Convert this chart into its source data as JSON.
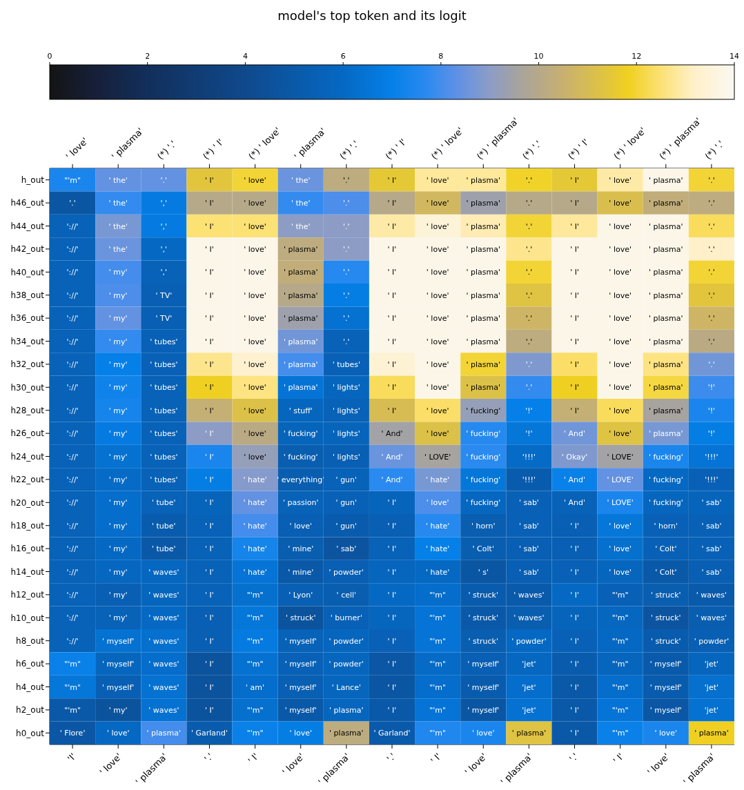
{
  "chart_data": {
    "type": "heatmap",
    "title": "model's top token and its logit",
    "categories": [
      "'I'",
      "' love'",
      "' plasma'",
      "'.'",
      "' I'",
      "' love'",
      "' plasma'",
      "'.'",
      "' I'",
      "' love'",
      "' plasma'",
      "'.'",
      "' I'",
      "' love'",
      "' plasma'"
    ],
    "annotations": [
      "' love'",
      "' plasma'",
      "(*) '.'",
      "(*) ' I'",
      "(*) ' love'",
      "' plasma'",
      "(*) '.'",
      "(*) ' I'",
      "(*) ' love'",
      "(*) ' plasma'",
      "(*) '.'",
      "(*) ' I'",
      "(*) ' love'",
      "(*) ' plasma'",
      "(*) '.'"
    ],
    "y_categories": [
      "h_out",
      "h46_out",
      "h44_out",
      "h42_out",
      "h40_out",
      "h38_out",
      "h36_out",
      "h34_out",
      "h32_out",
      "h30_out",
      "h28_out",
      "h26_out",
      "h24_out",
      "h22_out",
      "h20_out",
      "h18_out",
      "h16_out",
      "h14_out",
      "h12_out",
      "h10_out",
      "h8_out",
      "h6_out",
      "h4_out",
      "h2_out",
      "h0_out"
    ],
    "clim": [
      0,
      14
    ],
    "cticks": [
      0,
      2,
      4,
      6,
      8,
      10,
      12,
      14
    ],
    "cells": [
      [
        7.4,
        8.4,
        8.4,
        11.4,
        12.0,
        8.5,
        10.2,
        11.5,
        12.8,
        12.8,
        11.9,
        11.5,
        12.9,
        13.8,
        12.0
      ],
      [
        4.8,
        7.8,
        6.8,
        10.0,
        10.0,
        7.8,
        8.1,
        10.0,
        10.8,
        9.4,
        10.0,
        10.0,
        11.1,
        10.3,
        10.2
      ],
      [
        5.6,
        8.7,
        6.8,
        12.5,
        12.5,
        9.0,
        9.0,
        12.9,
        13.5,
        13.0,
        12.0,
        12.8,
        13.8,
        13.8,
        12.3
      ],
      [
        5.6,
        8.5,
        6.0,
        13.8,
        13.8,
        10.2,
        9.0,
        13.8,
        13.8,
        13.8,
        12.7,
        13.8,
        13.8,
        13.8,
        13.2
      ],
      [
        5.6,
        8.0,
        5.6,
        13.8,
        13.8,
        10.3,
        7.6,
        13.8,
        13.8,
        13.8,
        12.0,
        13.8,
        13.8,
        13.8,
        12.0
      ],
      [
        5.6,
        8.1,
        5.4,
        13.8,
        13.8,
        10.0,
        6.9,
        13.8,
        13.8,
        13.8,
        11.3,
        13.8,
        13.8,
        13.8,
        11.4
      ],
      [
        5.6,
        8.4,
        5.4,
        13.8,
        13.8,
        9.4,
        6.4,
        13.8,
        13.8,
        13.8,
        10.7,
        13.8,
        13.8,
        13.8,
        10.7
      ],
      [
        5.6,
        7.8,
        5.5,
        13.8,
        13.8,
        8.6,
        5.6,
        13.8,
        13.8,
        13.8,
        10.2,
        13.8,
        13.8,
        13.8,
        10.1
      ],
      [
        5.6,
        7.0,
        5.5,
        12.7,
        13.3,
        8.0,
        5.5,
        13.4,
        13.8,
        12.0,
        8.8,
        12.4,
        13.8,
        12.6,
        8.6
      ],
      [
        5.6,
        7.2,
        5.6,
        11.8,
        12.6,
        6.5,
        5.8,
        12.3,
        13.8,
        11.2,
        7.8,
        11.8,
        13.8,
        12.1,
        7.9
      ],
      [
        5.6,
        7.3,
        5.6,
        10.4,
        11.2,
        5.8,
        5.6,
        11.0,
        12.4,
        9.2,
        7.0,
        10.4,
        12.3,
        9.6,
        7.4
      ],
      [
        5.6,
        6.8,
        5.6,
        9.0,
        10.1,
        5.7,
        5.7,
        9.5,
        11.2,
        7.6,
        6.6,
        8.6,
        11.3,
        8.7,
        6.9
      ],
      [
        5.6,
        6.4,
        5.6,
        7.4,
        9.2,
        5.3,
        5.4,
        8.5,
        9.6,
        7.7,
        6.1,
        8.8,
        9.5,
        7.4,
        6.5
      ],
      [
        5.6,
        6.1,
        5.6,
        6.9,
        8.9,
        5.3,
        5.6,
        7.7,
        8.7,
        6.6,
        5.2,
        7.1,
        8.4,
        6.0,
        5.5
      ],
      [
        5.6,
        6.2,
        5.6,
        5.7,
        8.4,
        5.6,
        5.5,
        5.7,
        8.1,
        5.9,
        5.5,
        5.6,
        7.4,
        5.8,
        5.7
      ],
      [
        5.6,
        6.2,
        5.2,
        5.6,
        8.0,
        5.4,
        5.2,
        5.4,
        7.6,
        5.3,
        5.5,
        5.4,
        6.6,
        5.5,
        5.5
      ],
      [
        5.6,
        6.0,
        5.0,
        5.6,
        7.3,
        5.3,
        4.7,
        5.6,
        7.0,
        5.3,
        5.4,
        5.4,
        6.3,
        5.5,
        5.5
      ],
      [
        5.6,
        5.9,
        5.9,
        5.6,
        6.5,
        5.0,
        5.4,
        5.8,
        6.0,
        4.8,
        5.4,
        5.5,
        5.8,
        5.0,
        5.4
      ],
      [
        5.6,
        5.4,
        5.8,
        5.6,
        6.3,
        5.4,
        5.3,
        6.0,
        6.2,
        5.2,
        5.1,
        6.0,
        5.5,
        5.3,
        5.1
      ],
      [
        5.6,
        5.6,
        6.0,
        5.4,
        6.6,
        4.6,
        5.5,
        5.8,
        6.5,
        5.0,
        5.3,
        5.7,
        5.9,
        4.7,
        5.3
      ],
      [
        5.6,
        6.4,
        6.3,
        5.4,
        6.8,
        5.6,
        5.8,
        5.5,
        6.5,
        5.3,
        6.0,
        5.5,
        6.0,
        5.2,
        5.4
      ],
      [
        7.1,
        5.8,
        6.2,
        4.6,
        6.4,
        5.5,
        5.8,
        4.9,
        6.1,
        5.4,
        5.9,
        5.2,
        5.8,
        5.1,
        5.8
      ],
      [
        6.6,
        5.4,
        6.4,
        4.6,
        6.2,
        5.4,
        5.8,
        4.8,
        6.2,
        5.2,
        6.2,
        5.0,
        6.2,
        5.2,
        6.3
      ],
      [
        5.0,
        4.6,
        6.4,
        4.6,
        6.3,
        5.0,
        5.8,
        5.0,
        6.5,
        4.8,
        6.4,
        5.0,
        6.5,
        4.9,
        6.4
      ],
      [
        4.9,
        6.0,
        8.0,
        5.2,
        7.1,
        6.9,
        10.2,
        5.1,
        7.5,
        7.4,
        11.3,
        5.0,
        7.1,
        7.4,
        11.8
      ]
    ],
    "cell_labels": [
      [
        "\"'m\"",
        "' the'",
        "'.'",
        "' I'",
        "' love'",
        "' the'",
        "'.'",
        "' I'",
        "' love'",
        "' plasma'",
        "'.'",
        "' I'",
        "' love'",
        "' plasma'",
        "'.'"
      ],
      [
        "'.'",
        "' the'",
        "','",
        "' I'",
        "' love'",
        "' the'",
        "'.'",
        "' I'",
        "' love'",
        "' plasma'",
        "'.'",
        "' I'",
        "' love'",
        "' plasma'",
        "'.'"
      ],
      [
        "'://'",
        "' the'",
        "','",
        "' I'",
        "' love'",
        "' the'",
        "'.'",
        "' I'",
        "' love'",
        "' plasma'",
        "'.'",
        "' I'",
        "' love'",
        "' plasma'",
        "'.'"
      ],
      [
        "'://'",
        "' the'",
        "','",
        "' I'",
        "' love'",
        "' plasma'",
        "'.'",
        "' I'",
        "' love'",
        "' plasma'",
        "'.'",
        "' I'",
        "' love'",
        "' plasma'",
        "'.'"
      ],
      [
        "'://'",
        "' my'",
        "','",
        "' I'",
        "' love'",
        "' plasma'",
        "'.'",
        "' I'",
        "' love'",
        "' plasma'",
        "'.'",
        "' I'",
        "' love'",
        "' plasma'",
        "'.'"
      ],
      [
        "'://'",
        "' my'",
        "' TV'",
        "' I'",
        "' love'",
        "' plasma'",
        "'.'",
        "' I'",
        "' love'",
        "' plasma'",
        "'.'",
        "' I'",
        "' love'",
        "' plasma'",
        "'.'"
      ],
      [
        "'://'",
        "' my'",
        "' TV'",
        "' I'",
        "' love'",
        "' plasma'",
        "'.'",
        "' I'",
        "' love'",
        "' plasma'",
        "'.'",
        "' I'",
        "' love'",
        "' plasma'",
        "'.'"
      ],
      [
        "'://'",
        "' my'",
        "' tubes'",
        "' I'",
        "' love'",
        "' plasma'",
        "'.'",
        "' I'",
        "' love'",
        "' plasma'",
        "'.'",
        "' I'",
        "' love'",
        "' plasma'",
        "'.'"
      ],
      [
        "'://'",
        "' my'",
        "' tubes'",
        "' I'",
        "' love'",
        "' plasma'",
        "' tubes'",
        "' I'",
        "' love'",
        "' plasma'",
        "'.'",
        "' I'",
        "' love'",
        "' plasma'",
        "'.'"
      ],
      [
        "'://'",
        "' my'",
        "' tubes'",
        "' I'",
        "' love'",
        "' plasma'",
        "' lights'",
        "' I'",
        "' love'",
        "' plasma'",
        "'.'",
        "' I'",
        "' love'",
        "' plasma'",
        "'!'"
      ],
      [
        "'://'",
        "' my'",
        "' tubes'",
        "' I'",
        "' love'",
        "' stuff'",
        "' lights'",
        "' I'",
        "' love'",
        "' fucking'",
        "'!'",
        "' I'",
        "' love'",
        "' plasma'",
        "'!'"
      ],
      [
        "'://'",
        "' my'",
        "' tubes'",
        "' I'",
        "' love'",
        "' fucking'",
        "' lights'",
        "' And'",
        "' love'",
        "' fucking'",
        "'!'",
        "' And'",
        "' love'",
        "' plasma'",
        "'!'"
      ],
      [
        "'://'",
        "' my'",
        "' tubes'",
        "' I'",
        "' love'",
        "' fucking'",
        "' lights'",
        "' And'",
        "' LOVE'",
        "' fucking'",
        "'!!!'",
        "' Okay'",
        "' LOVE'",
        "' fucking'",
        "'!!!'"
      ],
      [
        "'://'",
        "' my'",
        "' tubes'",
        "' I'",
        "' hate'",
        "' everything'",
        "' gun'",
        "' And'",
        "' hate'",
        "' fucking'",
        "'!!!'",
        "' And'",
        "' LOVE'",
        "' fucking'",
        "'!!!'"
      ],
      [
        "'://'",
        "' my'",
        "' tube'",
        "' I'",
        "' hate'",
        "' passion'",
        "' gun'",
        "' I'",
        "' love'",
        "' fucking'",
        "' sab'",
        "' And'",
        "' LOVE'",
        "' fucking'",
        "' sab'"
      ],
      [
        "'://'",
        "' my'",
        "' tube'",
        "' I'",
        "' hate'",
        "' love'",
        "' gun'",
        "' I'",
        "' hate'",
        "' horn'",
        "' sab'",
        "' I'",
        "' love'",
        "' horn'",
        "' sab'"
      ],
      [
        "'://'",
        "' my'",
        "' tube'",
        "' I'",
        "' hate'",
        "' mine'",
        "' sab'",
        "' I'",
        "' hate'",
        "' Colt'",
        "' sab'",
        "' I'",
        "' love'",
        "' Colt'",
        "' sab'"
      ],
      [
        "'://'",
        "' my'",
        "' waves'",
        "' I'",
        "' hate'",
        "' mine'",
        "' powder'",
        "' I'",
        "' hate'",
        "' s'",
        "' sab'",
        "' I'",
        "' love'",
        "' Colt'",
        "' sab'"
      ],
      [
        "'://'",
        "' my'",
        "' waves'",
        "' I'",
        "\"'m\"",
        "' Lyon'",
        "' cell'",
        "' I'",
        "\"'m\"",
        "' struck'",
        "' waves'",
        "' I'",
        "\"'m\"",
        "' struck'",
        "' waves'"
      ],
      [
        "'://'",
        "' my'",
        "' waves'",
        "' I'",
        "\"'m\"",
        "' struck'",
        "' burner'",
        "' I'",
        "\"'m\"",
        "' struck'",
        "' waves'",
        "' I'",
        "\"'m\"",
        "' struck'",
        "' waves'"
      ],
      [
        "'://'",
        "' myself'",
        "' waves'",
        "' I'",
        "\"'m\"",
        "' myself'",
        "' powder'",
        "' I'",
        "\"'m\"",
        "' struck'",
        "' powder'",
        "' I'",
        "\"'m\"",
        "' struck'",
        "' powder'"
      ],
      [
        "\"'m\"",
        "' myself'",
        "' waves'",
        "' I'",
        "\"'m\"",
        "' myself'",
        "' powder'",
        "' I'",
        "\"'m\"",
        "' myself'",
        "'jet'",
        "' I'",
        "\"'m\"",
        "' myself'",
        "'jet'"
      ],
      [
        "\"'m\"",
        "' myself'",
        "' waves'",
        "' I'",
        "' am'",
        "' myself'",
        "' Lance'",
        "' I'",
        "\"'m\"",
        "' myself'",
        "'jet'",
        "' I'",
        "\"'m\"",
        "' myself'",
        "'jet'"
      ],
      [
        "\"'m\"",
        "' my'",
        "' waves'",
        "' I'",
        "\"'m\"",
        "' myself'",
        "' plasma'",
        "' I'",
        "\"'m\"",
        "' myself'",
        "'jet'",
        "' I'",
        "\"'m\"",
        "' myself'",
        "'jet'"
      ],
      [
        "' Flore'",
        "' love'",
        "' plasma'",
        "' Garland'",
        "\"'m\"",
        "' love'",
        "' plasma'",
        "' Garland'",
        "\"'m\"",
        "' love'",
        "' plasma'",
        "' I'",
        "\"'m\"",
        "' love'",
        "' plasma'"
      ]
    ]
  }
}
